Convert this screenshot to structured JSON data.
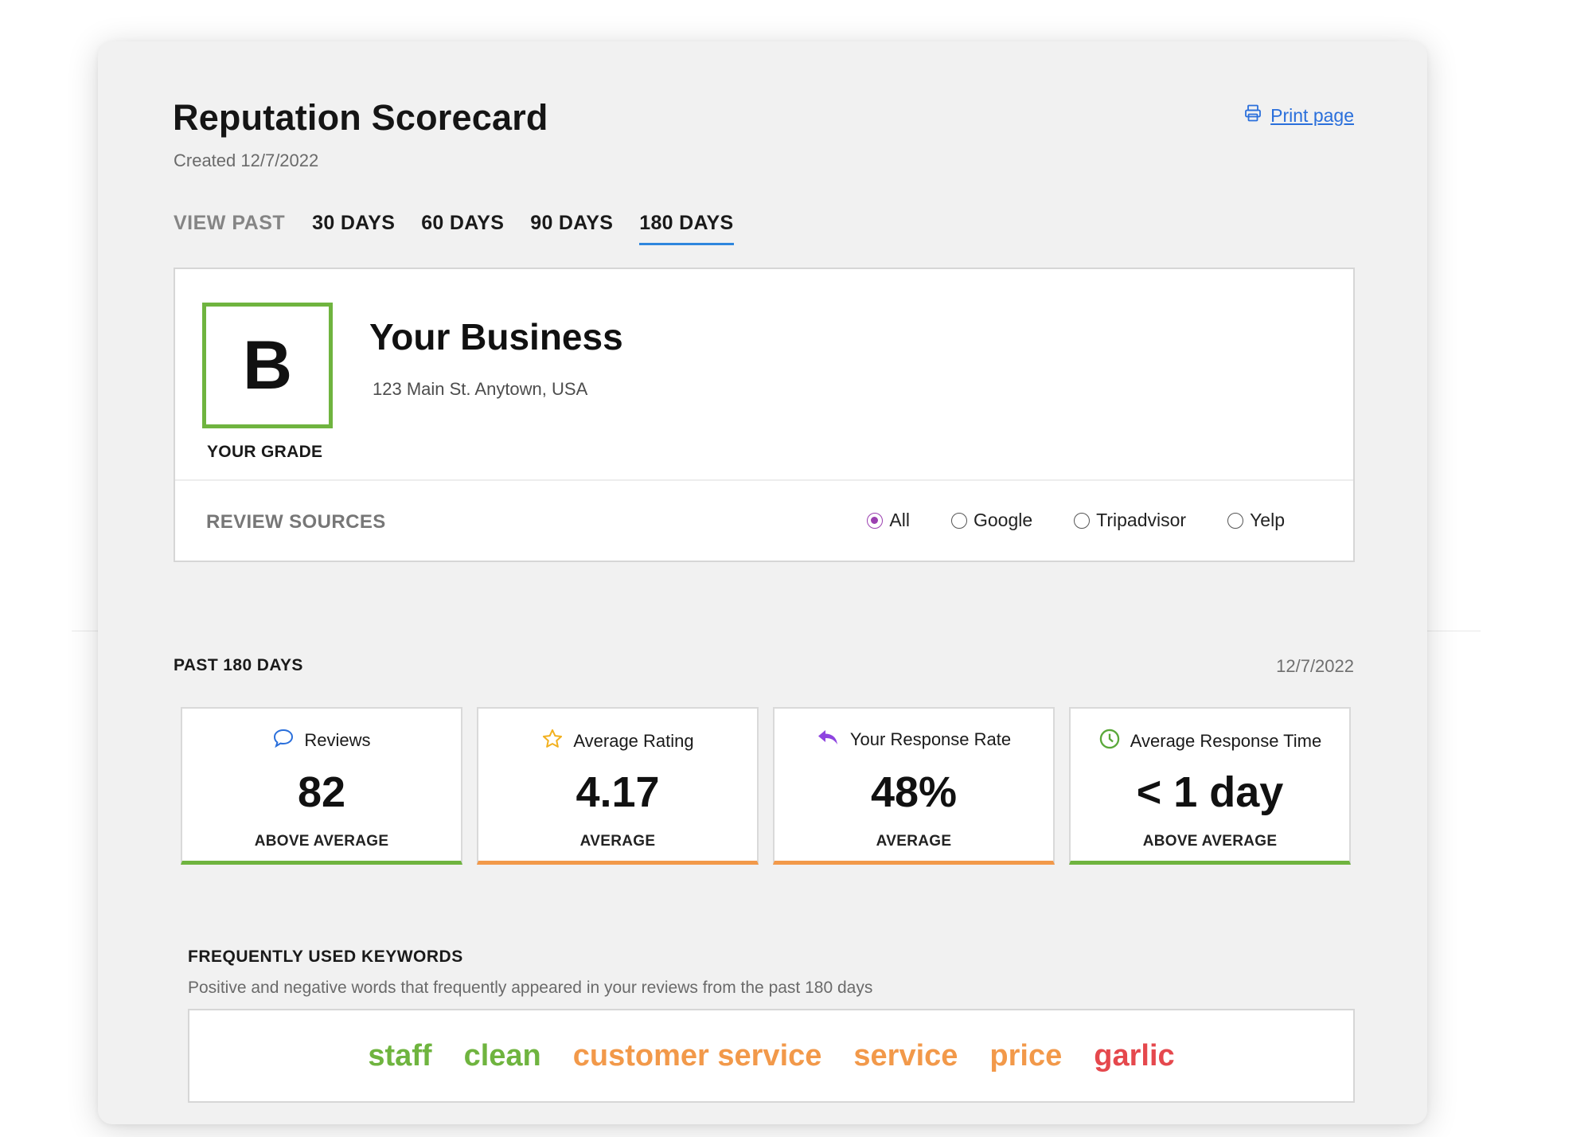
{
  "header": {
    "title": "Reputation Scorecard",
    "created": "Created 12/7/2022",
    "print_label": "Print page"
  },
  "tabs": {
    "view_past_label": "VIEW PAST",
    "items": [
      {
        "label": "30 DAYS",
        "active": false
      },
      {
        "label": "60 DAYS",
        "active": false
      },
      {
        "label": "90 DAYS",
        "active": false
      },
      {
        "label": "180 DAYS",
        "active": true
      }
    ]
  },
  "business": {
    "grade": "B",
    "grade_label": "YOUR GRADE",
    "name": "Your Business",
    "address": "123 Main St. Anytown, USA",
    "grade_color": "#6fb43f"
  },
  "review_sources": {
    "label": "REVIEW SOURCES",
    "options": [
      "All",
      "Google",
      "Tripadvisor",
      "Yelp"
    ],
    "selected": "All"
  },
  "period": {
    "label": "PAST 180 DAYS",
    "date": "12/7/2022"
  },
  "metrics": [
    {
      "title": "Reviews",
      "value": "82",
      "status": "ABOVE AVERAGE",
      "icon": "speech-bubble-icon",
      "status_color": "#6fb43f"
    },
    {
      "title": "Average Rating",
      "value": "4.17",
      "status": "AVERAGE",
      "icon": "star-icon",
      "status_color": "#f2994a"
    },
    {
      "title": "Your Response Rate",
      "value": "48%",
      "status": "AVERAGE",
      "icon": "reply-arrow-icon",
      "status_color": "#f2994a"
    },
    {
      "title": "Average Response Time",
      "value": "< 1 day",
      "status": "ABOVE AVERAGE",
      "icon": "clock-icon",
      "status_color": "#6fb43f"
    }
  ],
  "keywords": {
    "title": "FREQUENTLY USED KEYWORDS",
    "description": "Positive and negative words that frequently appeared in your reviews from the past 180 days",
    "items": [
      {
        "word": "staff",
        "color": "#6fb43f"
      },
      {
        "word": "clean",
        "color": "#6fb43f"
      },
      {
        "word": "customer service",
        "color": "#f2994a"
      },
      {
        "word": "service",
        "color": "#f2994a"
      },
      {
        "word": "price",
        "color": "#f2994a"
      },
      {
        "word": "garlic",
        "color": "#e5484d"
      }
    ]
  }
}
